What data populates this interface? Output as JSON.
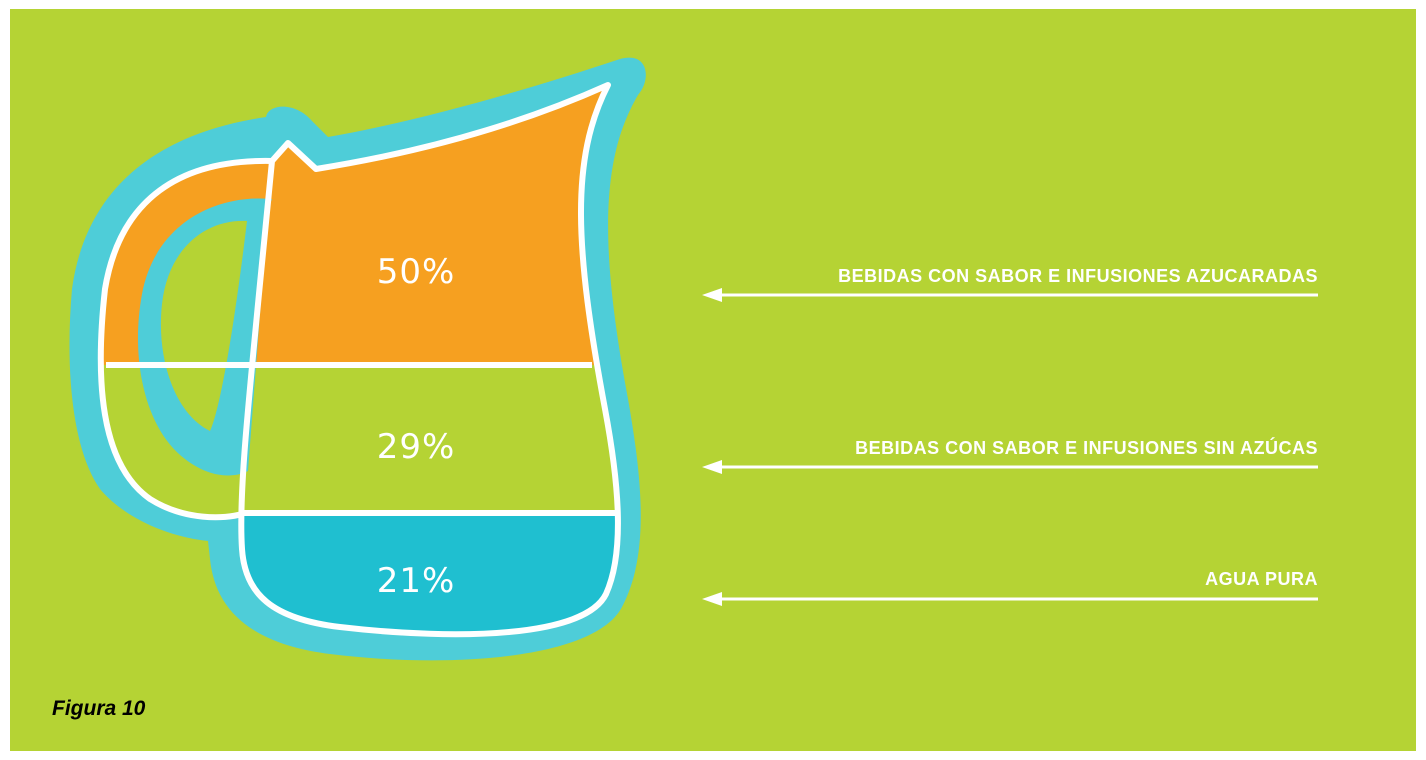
{
  "figure_label": "Figura 10",
  "colors": {
    "background": "#b5d334",
    "pitcher_outline": "#4ecdd8",
    "segment_top": "#f6a020",
    "segment_middle": "#b5d334",
    "segment_bottom": "#1fbfd0",
    "lines": "#ffffff"
  },
  "chart_data": {
    "type": "pictorial-stacked",
    "unit": "%",
    "segments": [
      {
        "label": "BEBIDAS CON SABOR E INFUSIONES AZUCARADAS",
        "value": 50,
        "display": "50%"
      },
      {
        "label": "BEBIDAS CON SABOR E INFUSIONES SIN AZÚCAS",
        "value": 29,
        "display": "29%"
      },
      {
        "label": "AGUA PURA",
        "value": 21,
        "display": "21%"
      }
    ]
  }
}
